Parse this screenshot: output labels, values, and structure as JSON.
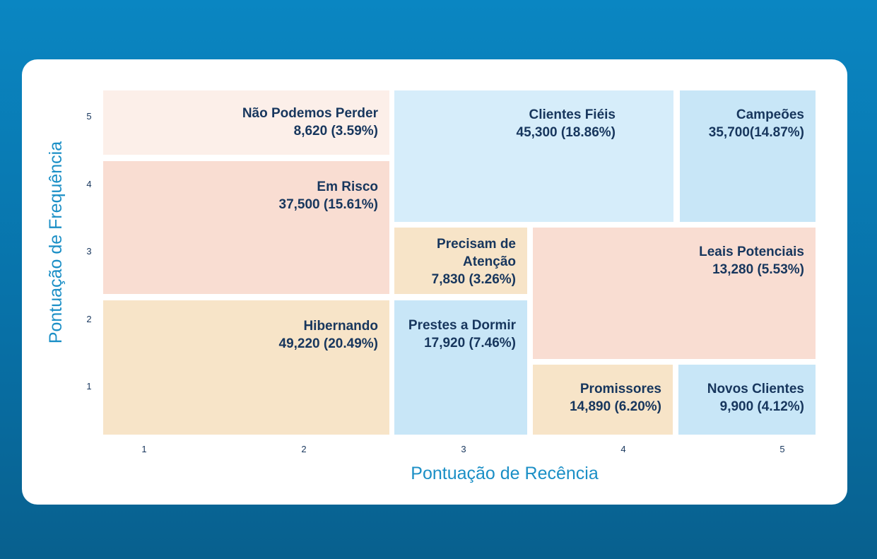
{
  "chart_data": {
    "type": "treemap",
    "title": "",
    "xlabel": "Pontuação de Recência",
    "ylabel": "Pontuação de Frequência",
    "xticks": [
      "1",
      "2",
      "3",
      "4",
      "5"
    ],
    "yticks": [
      "5",
      "4",
      "3",
      "2",
      "1"
    ],
    "segments": [
      {
        "id": "nao-podemos-perder",
        "label": "Não Podemos Perder",
        "count": 8620,
        "share": "3.59%",
        "value_text": "8,620 (3.59%)",
        "color": "#fcefe9"
      },
      {
        "id": "em-risco",
        "label": "Em Risco",
        "count": 37500,
        "share": "15.61%",
        "value_text": "37,500 (15.61%)",
        "color": "#f9ddd2"
      },
      {
        "id": "hibernando",
        "label": "Hibernando",
        "count": 49220,
        "share": "20.49%",
        "value_text": "49,220 (20.49%)",
        "color": "#f7e4c8"
      },
      {
        "id": "clientes-fieis",
        "label": "Clientes Fiéis",
        "count": 45300,
        "share": "18.86%",
        "value_text": "45,300 (18.86%)",
        "color": "#d6edfa"
      },
      {
        "id": "campeoes",
        "label": "Campeões",
        "count": 35700,
        "share": "14.87%",
        "value_text": "35,700(14.87%)",
        "color": "#c8e6f7"
      },
      {
        "id": "precisam-de-atencao",
        "label_lines": [
          "Precisam de",
          "Atenção"
        ],
        "count": 7830,
        "share": "3.26%",
        "value_text": "7,830 (3.26%)",
        "color": "#f7e4c8"
      },
      {
        "id": "leais-potenciais",
        "label": "Leais Potenciais",
        "count": 13280,
        "share": "5.53%",
        "value_text": "13,280 (5.53%)",
        "color": "#f9ddd2"
      },
      {
        "id": "prestes-a-dormir",
        "label": "Prestes a Dormir",
        "count": 17920,
        "share": "7.46%",
        "value_text": "17,920 (7.46%)",
        "color": "#c8e6f7"
      },
      {
        "id": "promissores",
        "label": "Promissores",
        "count": 14890,
        "share": "6.20%",
        "value_text": "14,890 (6.20%)",
        "color": "#f7e4c8"
      },
      {
        "id": "novos-clientes",
        "label": "Novos Clientes",
        "count": 9900,
        "share": "4.12%",
        "value_text": "9,900 (4.12%)",
        "color": "#c8e6f7"
      }
    ]
  }
}
